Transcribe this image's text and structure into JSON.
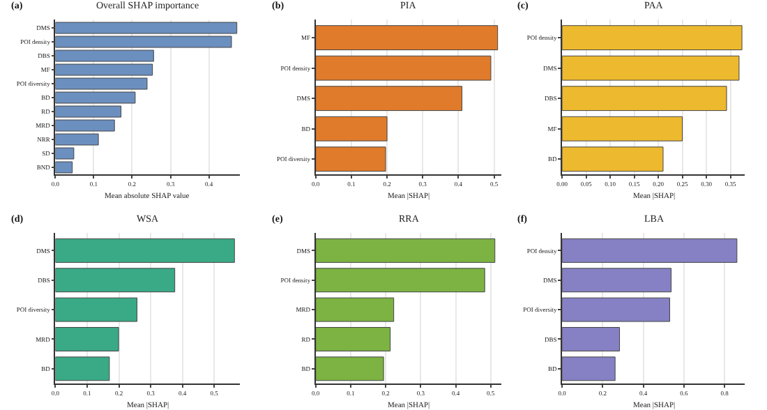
{
  "chart_data": [
    {
      "type": "bar",
      "orientation": "horizontal",
      "title": "Overall SHAP importance",
      "xlabel": "Mean absolute SHAP value",
      "annotations": [
        "(a)"
      ],
      "categories": [
        "DMS",
        "POI density",
        "DBS",
        "MF",
        "POI diversity",
        "BD",
        "RD",
        "MRD",
        "NRR",
        "SD",
        "BND"
      ],
      "values": [
        0.473,
        0.459,
        0.256,
        0.253,
        0.239,
        0.208,
        0.171,
        0.154,
        0.112,
        0.048,
        0.044
      ],
      "color": "#6b8fbf",
      "xlim": [
        0,
        0.48
      ],
      "xticks": [
        {
          "value": 0,
          "label": "0.0"
        },
        0.1,
        0.2,
        0.3,
        0.4
      ],
      "grid": "x"
    },
    {
      "type": "bar",
      "orientation": "horizontal",
      "title": "PIA",
      "xlabel": "Mean |SHAP|",
      "annotations": [
        "(b)"
      ],
      "categories": [
        "MF",
        "POI density",
        "DMS",
        "BD",
        "POI diversity"
      ],
      "values": [
        0.51,
        0.491,
        0.41,
        0.2,
        0.196
      ],
      "color": "#e07b2c",
      "xlim": [
        0,
        0.52
      ],
      "xticks": [
        {
          "value": 0,
          "label": "0.0"
        },
        0.1,
        0.2,
        0.3,
        0.4,
        0.5
      ],
      "grid": "x"
    },
    {
      "type": "bar",
      "orientation": "horizontal",
      "title": "PAA",
      "xlabel": "Mean |SHAP|",
      "annotations": [
        "(c)"
      ],
      "categories": [
        "POI density",
        "DMS",
        "DBS",
        "MF",
        "BD"
      ],
      "values": [
        0.374,
        0.368,
        0.342,
        0.25,
        0.21
      ],
      "color": "#edb92e",
      "xlim": [
        0,
        0.38
      ],
      "xticks": [
        {
          "value": 0,
          "label": "0.00"
        },
        0.05,
        {
          "value": 0.1,
          "label": "0.10"
        },
        0.15,
        {
          "value": 0.2,
          "label": "0.20"
        },
        0.25,
        {
          "value": 0.3,
          "label": "0.30"
        },
        0.35
      ],
      "grid": "x"
    },
    {
      "type": "bar",
      "orientation": "horizontal",
      "title": "WSA",
      "xlabel": "Mean |SHAP|",
      "annotations": [
        "(d)"
      ],
      "categories": [
        "DMS",
        "DBS",
        "POI diversity",
        "MRD",
        "BD"
      ],
      "values": [
        0.564,
        0.376,
        0.257,
        0.199,
        0.17
      ],
      "color": "#3aa986",
      "xlim": [
        0,
        0.58
      ],
      "xticks": [
        {
          "value": 0,
          "label": "0.0"
        },
        0.1,
        0.2,
        0.3,
        0.4,
        0.5
      ],
      "grid": "x"
    },
    {
      "type": "bar",
      "orientation": "horizontal",
      "title": "RRA",
      "xlabel": "Mean |SHAP|",
      "annotations": [
        "(e)"
      ],
      "categories": [
        "DMS",
        "POI density",
        "MRD",
        "RD",
        "BD"
      ],
      "values": [
        0.512,
        0.483,
        0.223,
        0.213,
        0.194
      ],
      "color": "#7cb342",
      "xlim": [
        0,
        0.53
      ],
      "xticks": [
        {
          "value": 0,
          "label": "0.0"
        },
        0.1,
        0.2,
        0.3,
        0.4,
        0.5
      ],
      "grid": "x"
    },
    {
      "type": "bar",
      "orientation": "horizontal",
      "title": "LBA",
      "xlabel": "Mean |SHAP|",
      "annotations": [
        "(f)"
      ],
      "categories": [
        "POI density",
        "DMS",
        "POI diversity",
        "DBS",
        "BD"
      ],
      "values": [
        0.861,
        0.537,
        0.53,
        0.283,
        0.261
      ],
      "color": "#8681c4",
      "xlim": [
        0,
        0.9
      ],
      "xticks": [
        {
          "value": 0,
          "label": "0.0"
        },
        0.2,
        0.4,
        0.6,
        0.8
      ],
      "grid": "x"
    }
  ]
}
